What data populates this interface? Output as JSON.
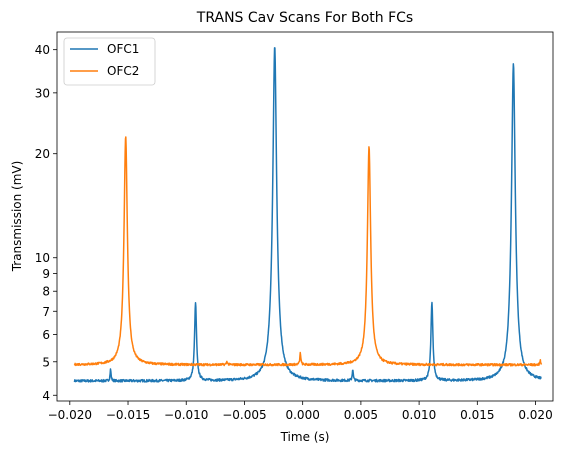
{
  "chart_data": {
    "type": "line",
    "title": "TRANS Cav Scans For Both FCs",
    "xlabel": "Time (s)",
    "ylabel": "Transmission (mV)",
    "xlim": [
      -0.0211,
      0.0215
    ],
    "ylim": [
      3.85,
      45.0
    ],
    "yscale": "log",
    "grid": false,
    "legend_position": "top-left",
    "xticks": [
      -0.02,
      -0.015,
      -0.01,
      -0.005,
      0.0,
      0.005,
      0.01,
      0.015,
      0.02
    ],
    "xtick_labels": [
      "−0.020",
      "−0.015",
      "−0.010",
      "−0.005",
      "0.000",
      "0.005",
      "0.010",
      "0.015",
      "0.020"
    ],
    "yticks": [
      4,
      5,
      6,
      7,
      8,
      9,
      10,
      20,
      30,
      40
    ],
    "ytick_labels": [
      "4",
      "5",
      "6",
      "7",
      "8",
      "9",
      "10",
      "20",
      "30",
      "40"
    ],
    "x_range": [
      -0.0196,
      0.0205
    ],
    "series": [
      {
        "name": "OFC1",
        "color": "#1f77b4",
        "baseline": 4.4,
        "peaks": [
          {
            "x": -0.0165,
            "y": 4.75,
            "width": 5e-05
          },
          {
            "x": -0.0092,
            "y": 7.4,
            "width": 9e-05
          },
          {
            "x": -0.0024,
            "y": 41.0,
            "width": 0.00012
          },
          {
            "x": 0.0043,
            "y": 4.75,
            "width": 5e-05
          },
          {
            "x": 0.0111,
            "y": 7.4,
            "width": 9e-05
          },
          {
            "x": 0.0181,
            "y": 36.5,
            "width": 0.00012
          }
        ]
      },
      {
        "name": "OFC2",
        "color": "#ff7f0e",
        "baseline": 4.9,
        "peaks": [
          {
            "x": -0.0152,
            "y": 22.5,
            "width": 0.00012
          },
          {
            "x": -0.0065,
            "y": 5.0,
            "width": 6e-05
          },
          {
            "x": -0.0002,
            "y": 5.3,
            "width": 5e-05
          },
          {
            "x": 0.0057,
            "y": 21.0,
            "width": 0.00012
          },
          {
            "x": 0.0204,
            "y": 5.05,
            "width": 4e-05
          }
        ]
      }
    ]
  }
}
